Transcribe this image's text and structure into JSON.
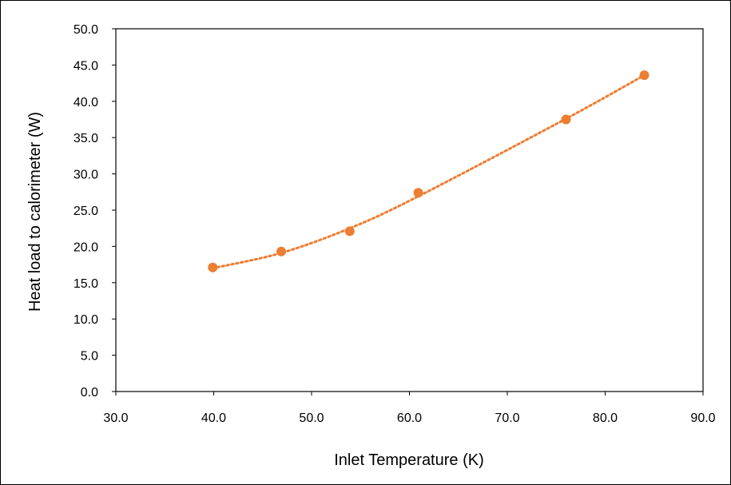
{
  "chart_data": {
    "type": "scatter",
    "title": "",
    "xlabel": "Inlet Temperature (K)",
    "ylabel": "Heat load to calorimeter (W)",
    "xlim": [
      30,
      90
    ],
    "ylim": [
      0,
      50
    ],
    "xticks": [
      "30.0",
      "40.0",
      "50.0",
      "60.0",
      "70.0",
      "80.0",
      "90.0"
    ],
    "yticks": [
      "0.0",
      "5.0",
      "10.0",
      "15.0",
      "20.0",
      "25.0",
      "30.0",
      "35.0",
      "40.0",
      "45.0",
      "50.0"
    ],
    "grid": false,
    "legend": "none",
    "series": [
      {
        "marker_color": "#ED7D31",
        "x": [
          39.9,
          46.9,
          53.9,
          60.9,
          76.0,
          84.0
        ],
        "y": [
          17.1,
          19.3,
          22.1,
          27.4,
          37.5,
          43.6
        ]
      }
    ],
    "trendline": {
      "style": "dotted",
      "color": "#ED7D31",
      "x": [
        39.9,
        46.9,
        53.9,
        60.9,
        76.0,
        84.0
      ],
      "y": [
        17.0,
        19.1,
        22.5,
        26.9,
        37.6,
        43.6
      ]
    }
  }
}
